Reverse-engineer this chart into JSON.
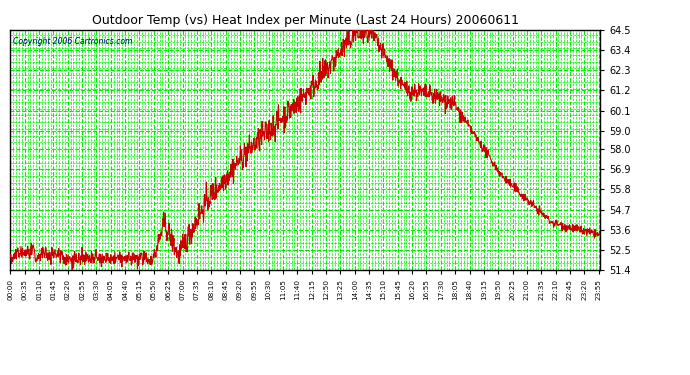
{
  "title": "Outdoor Temp (vs) Heat Index per Minute (Last 24 Hours) 20060611",
  "copyright": "Copyright 2006 Cartronics.com",
  "background_color": "#ffffff",
  "plot_bg_color": "#ffffff",
  "grid_color": "#00ee00",
  "line_color": "#cc0000",
  "text_color": "#000000",
  "yticks": [
    51.4,
    52.5,
    53.6,
    54.7,
    55.8,
    56.9,
    58.0,
    59.0,
    60.1,
    61.2,
    62.3,
    63.4,
    64.5
  ],
  "ymin": 51.4,
  "ymax": 64.5,
  "num_minutes": 1440,
  "xtick_interval": 35,
  "xtick_labels": [
    "00:00",
    "00:35",
    "01:10",
    "01:45",
    "02:20",
    "02:55",
    "03:30",
    "04:05",
    "04:40",
    "05:15",
    "05:50",
    "06:25",
    "07:00",
    "07:35",
    "08:10",
    "08:45",
    "09:20",
    "09:55",
    "10:30",
    "11:05",
    "11:40",
    "12:15",
    "12:50",
    "13:25",
    "14:00",
    "14:35",
    "15:10",
    "15:45",
    "16:20",
    "16:55",
    "17:30",
    "18:05",
    "18:40",
    "19:15",
    "19:50",
    "20:25",
    "21:00",
    "21:35",
    "22:10",
    "22:45",
    "23:20",
    "23:55"
  ]
}
